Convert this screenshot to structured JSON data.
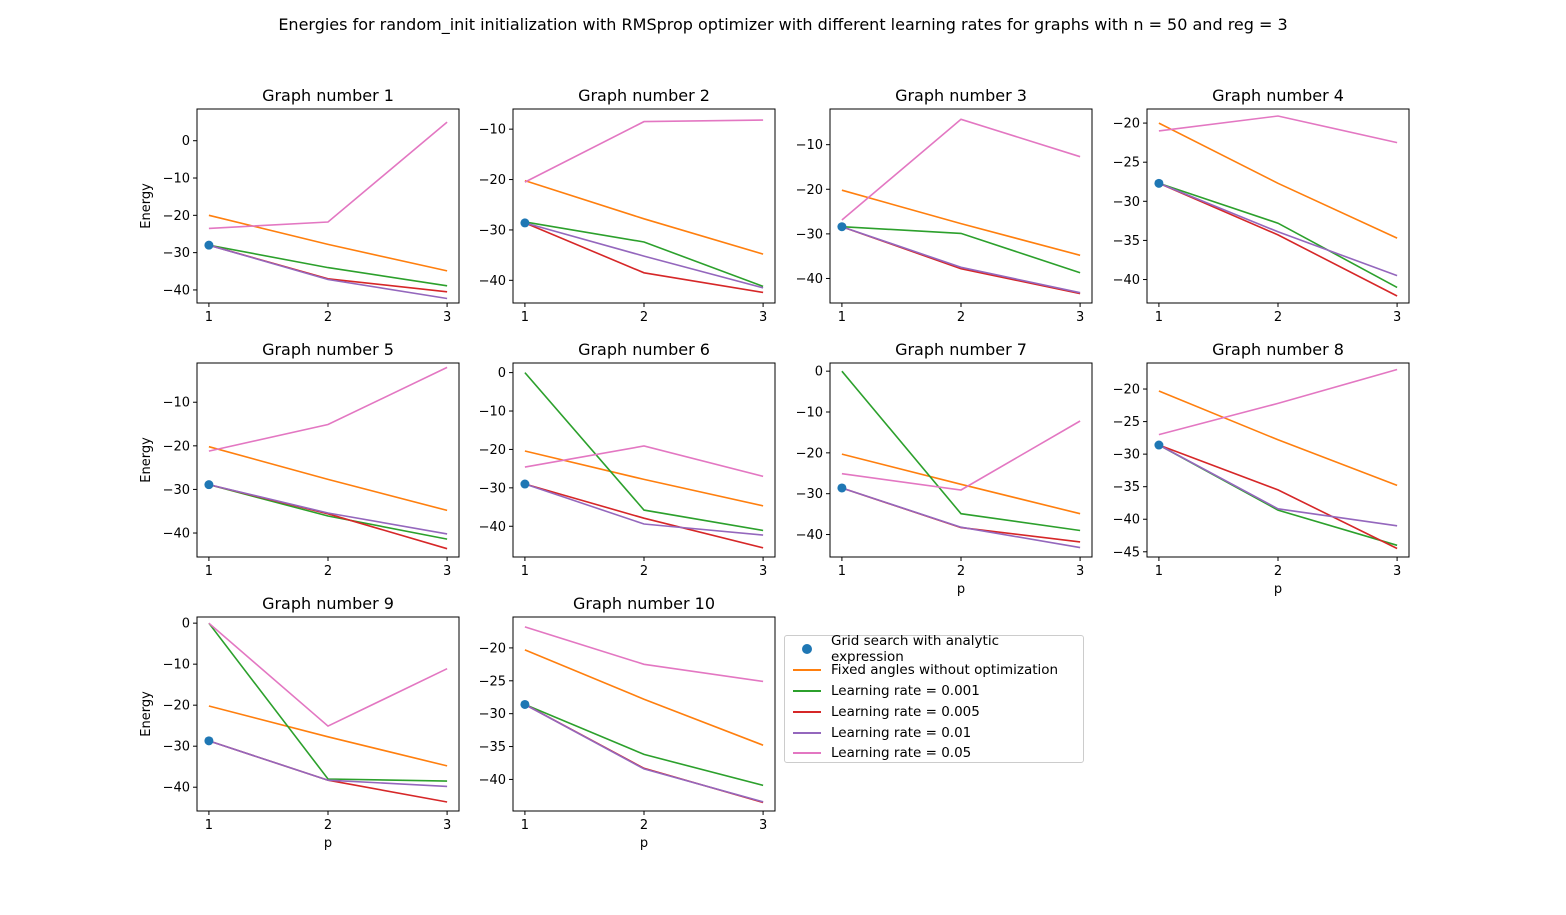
{
  "figure": {
    "title": "Energies for random_init initialization with RMSprop optimizer with different learning rates for graphs with n = 50 and reg = 3"
  },
  "colors": {
    "grid": "#1f77b4",
    "fixed": "#ff7f0e",
    "lr0001": "#2ca02c",
    "lr0005": "#d62728",
    "lr001": "#9467bd",
    "lr005": "#e377c2"
  },
  "legend": {
    "grid": "Grid search with analytic expression",
    "fixed": "Fixed angles without optimization",
    "lr0001": "Learning rate = 0.001",
    "lr0005": "Learning rate = 0.005",
    "lr001": "Learning rate = 0.01",
    "lr005": "Learning rate = 0.05"
  },
  "chart_data": [
    {
      "type": "line",
      "title": "Graph number 1",
      "xlabel": "",
      "ylabel": "Energy",
      "x": [
        1,
        2,
        3
      ],
      "xticks": [
        "1",
        "2",
        "3"
      ],
      "ylim": [
        -43.5,
        8.5
      ],
      "yticks": [
        0,
        -10,
        -20,
        -30,
        -40
      ],
      "grid_point": -28.0,
      "series": [
        {
          "name": "Fixed angles without optimization",
          "key": "fixed",
          "values": [
            -20.0,
            -27.8,
            -34.9
          ]
        },
        {
          "name": "Learning rate = 0.001",
          "key": "lr0001",
          "values": [
            -28.0,
            -34.0,
            -38.9
          ]
        },
        {
          "name": "Learning rate = 0.005",
          "key": "lr0005",
          "values": [
            -28.0,
            -37.0,
            -40.5
          ]
        },
        {
          "name": "Learning rate = 0.01",
          "key": "lr001",
          "values": [
            -28.0,
            -37.2,
            -42.3
          ]
        },
        {
          "name": "Learning rate = 0.05",
          "key": "lr005",
          "values": [
            -23.5,
            -21.8,
            5.0
          ]
        }
      ]
    },
    {
      "type": "line",
      "title": "Graph number 2",
      "xlabel": "",
      "ylabel": "",
      "x": [
        1,
        2,
        3
      ],
      "xticks": [
        "1",
        "2",
        "3"
      ],
      "ylim": [
        -44.5,
        -6.0
      ],
      "yticks": [
        -10,
        -20,
        -30,
        -40
      ],
      "grid_point": -28.6,
      "series": [
        {
          "name": "Fixed angles without optimization",
          "key": "fixed",
          "values": [
            -20.2,
            -27.8,
            -34.8
          ]
        },
        {
          "name": "Learning rate = 0.001",
          "key": "lr0001",
          "values": [
            -28.4,
            -32.4,
            -41.2
          ]
        },
        {
          "name": "Learning rate = 0.005",
          "key": "lr0005",
          "values": [
            -28.6,
            -38.5,
            -42.4
          ]
        },
        {
          "name": "Learning rate = 0.01",
          "key": "lr001",
          "values": [
            -28.6,
            -35.2,
            -41.5
          ]
        },
        {
          "name": "Learning rate = 0.05",
          "key": "lr005",
          "values": [
            -20.5,
            -8.5,
            -8.2
          ]
        }
      ]
    },
    {
      "type": "line",
      "title": "Graph number 3",
      "xlabel": "",
      "ylabel": "",
      "x": [
        1,
        2,
        3
      ],
      "xticks": [
        "1",
        "2",
        "3"
      ],
      "ylim": [
        -45.5,
        -2.0
      ],
      "yticks": [
        -10,
        -20,
        -30,
        -40
      ],
      "grid_point": -28.4,
      "series": [
        {
          "name": "Fixed angles without optimization",
          "key": "fixed",
          "values": [
            -20.2,
            -27.7,
            -34.8
          ]
        },
        {
          "name": "Learning rate = 0.001",
          "key": "lr0001",
          "values": [
            -28.4,
            -29.9,
            -38.7
          ]
        },
        {
          "name": "Learning rate = 0.005",
          "key": "lr0005",
          "values": [
            -28.4,
            -37.8,
            -43.4
          ]
        },
        {
          "name": "Learning rate = 0.01",
          "key": "lr001",
          "values": [
            -28.4,
            -37.5,
            -43.2
          ]
        },
        {
          "name": "Learning rate = 0.05",
          "key": "lr005",
          "values": [
            -26.9,
            -4.3,
            -12.7
          ]
        }
      ]
    },
    {
      "type": "line",
      "title": "Graph number 4",
      "xlabel": "",
      "ylabel": "",
      "x": [
        1,
        2,
        3
      ],
      "xticks": [
        "1",
        "2",
        "3"
      ],
      "ylim": [
        -43.0,
        -18.2
      ],
      "yticks": [
        -20,
        -25,
        -30,
        -35,
        -40
      ],
      "grid_point": -27.7,
      "series": [
        {
          "name": "Fixed angles without optimization",
          "key": "fixed",
          "values": [
            -20.0,
            -27.7,
            -34.7
          ]
        },
        {
          "name": "Learning rate = 0.001",
          "key": "lr0001",
          "values": [
            -27.7,
            -32.8,
            -41.0
          ]
        },
        {
          "name": "Learning rate = 0.005",
          "key": "lr0005",
          "values": [
            -27.7,
            -34.3,
            -42.1
          ]
        },
        {
          "name": "Learning rate = 0.01",
          "key": "lr001",
          "values": [
            -27.7,
            -33.9,
            -39.5
          ]
        },
        {
          "name": "Learning rate = 0.05",
          "key": "lr005",
          "values": [
            -21.0,
            -19.1,
            -22.5
          ]
        }
      ]
    },
    {
      "type": "line",
      "title": "Graph number 5",
      "xlabel": "",
      "ylabel": "Energy",
      "x": [
        1,
        2,
        3
      ],
      "xticks": [
        "1",
        "2",
        "3"
      ],
      "ylim": [
        -45.5,
        -1.0
      ],
      "yticks": [
        -10,
        -20,
        -30,
        -40
      ],
      "grid_point": -28.9,
      "series": [
        {
          "name": "Fixed angles without optimization",
          "key": "fixed",
          "values": [
            -20.2,
            -27.7,
            -34.8
          ]
        },
        {
          "name": "Learning rate = 0.001",
          "key": "lr0001",
          "values": [
            -28.9,
            -36.1,
            -41.4
          ]
        },
        {
          "name": "Learning rate = 0.005",
          "key": "lr0005",
          "values": [
            -28.9,
            -35.6,
            -43.6
          ]
        },
        {
          "name": "Learning rate = 0.01",
          "key": "lr001",
          "values": [
            -28.9,
            -35.4,
            -40.2
          ]
        },
        {
          "name": "Learning rate = 0.05",
          "key": "lr005",
          "values": [
            -21.2,
            -15.1,
            -2.0
          ]
        }
      ]
    },
    {
      "type": "line",
      "title": "Graph number 6",
      "xlabel": "",
      "ylabel": "",
      "x": [
        1,
        2,
        3
      ],
      "xticks": [
        "1",
        "2",
        "3"
      ],
      "ylim": [
        -48.0,
        2.5
      ],
      "yticks": [
        0,
        -10,
        -20,
        -30,
        -40
      ],
      "grid_point": -29.0,
      "series": [
        {
          "name": "Fixed angles without optimization",
          "key": "fixed",
          "values": [
            -20.4,
            -27.8,
            -34.7
          ]
        },
        {
          "name": "Learning rate = 0.001",
          "key": "lr0001",
          "values": [
            0.0,
            -35.8,
            -41.1
          ]
        },
        {
          "name": "Learning rate = 0.005",
          "key": "lr0005",
          "values": [
            -29.0,
            -37.9,
            -45.6
          ]
        },
        {
          "name": "Learning rate = 0.01",
          "key": "lr001",
          "values": [
            -29.0,
            -39.4,
            -42.3
          ]
        },
        {
          "name": "Learning rate = 0.05",
          "key": "lr005",
          "values": [
            -24.6,
            -19.1,
            -27.0
          ]
        }
      ]
    },
    {
      "type": "line",
      "title": "Graph number 7",
      "xlabel": "p",
      "ylabel": "",
      "x": [
        1,
        2,
        3
      ],
      "xticks": [
        "1",
        "2",
        "3"
      ],
      "ylim": [
        -45.5,
        2.0
      ],
      "yticks": [
        0,
        -10,
        -20,
        -30,
        -40
      ],
      "grid_point": -28.6,
      "series": [
        {
          "name": "Fixed angles without optimization",
          "key": "fixed",
          "values": [
            -20.3,
            -27.7,
            -34.9
          ]
        },
        {
          "name": "Learning rate = 0.001",
          "key": "lr0001",
          "values": [
            0.0,
            -34.9,
            -39.0
          ]
        },
        {
          "name": "Learning rate = 0.005",
          "key": "lr0005",
          "values": [
            -28.6,
            -38.3,
            -41.8
          ]
        },
        {
          "name": "Learning rate = 0.01",
          "key": "lr001",
          "values": [
            -28.6,
            -38.2,
            -43.2
          ]
        },
        {
          "name": "Learning rate = 0.05",
          "key": "lr005",
          "values": [
            -25.1,
            -29.1,
            -12.2
          ]
        }
      ]
    },
    {
      "type": "line",
      "title": "Graph number 8",
      "xlabel": "p",
      "ylabel": "",
      "x": [
        1,
        2,
        3
      ],
      "xticks": [
        "1",
        "2",
        "3"
      ],
      "ylim": [
        -45.8,
        -16.0
      ],
      "yticks": [
        -20,
        -25,
        -30,
        -35,
        -40,
        -45
      ],
      "grid_point": -28.6,
      "series": [
        {
          "name": "Fixed angles without optimization",
          "key": "fixed",
          "values": [
            -20.3,
            -27.8,
            -34.8
          ]
        },
        {
          "name": "Learning rate = 0.001",
          "key": "lr0001",
          "values": [
            -28.6,
            -38.6,
            -44.0
          ]
        },
        {
          "name": "Learning rate = 0.005",
          "key": "lr0005",
          "values": [
            -28.6,
            -35.5,
            -44.5
          ]
        },
        {
          "name": "Learning rate = 0.01",
          "key": "lr001",
          "values": [
            -28.6,
            -38.4,
            -41.0
          ]
        },
        {
          "name": "Learning rate = 0.05",
          "key": "lr005",
          "values": [
            -27.0,
            -22.2,
            -17.0
          ]
        }
      ]
    },
    {
      "type": "line",
      "title": "Graph number 9",
      "xlabel": "p",
      "ylabel": "Energy",
      "x": [
        1,
        2,
        3
      ],
      "xticks": [
        "1",
        "2",
        "3"
      ],
      "ylim": [
        -45.8,
        1.5
      ],
      "yticks": [
        0,
        -10,
        -20,
        -30,
        -40
      ],
      "grid_point": -28.7,
      "series": [
        {
          "name": "Fixed angles without optimization",
          "key": "fixed",
          "values": [
            -20.2,
            -27.7,
            -34.8
          ]
        },
        {
          "name": "Learning rate = 0.001",
          "key": "lr0001",
          "values": [
            0.0,
            -38.0,
            -38.5
          ]
        },
        {
          "name": "Learning rate = 0.005",
          "key": "lr0005",
          "values": [
            -28.7,
            -38.3,
            -43.6
          ]
        },
        {
          "name": "Learning rate = 0.01",
          "key": "lr001",
          "values": [
            -28.7,
            -38.3,
            -39.8
          ]
        },
        {
          "name": "Learning rate = 0.05",
          "key": "lr005",
          "values": [
            0.0,
            -25.1,
            -11.1
          ]
        }
      ]
    },
    {
      "type": "line",
      "title": "Graph number 10",
      "xlabel": "p",
      "ylabel": "",
      "x": [
        1,
        2,
        3
      ],
      "xticks": [
        "1",
        "2",
        "3"
      ],
      "ylim": [
        -44.8,
        -15.3
      ],
      "yticks": [
        -20,
        -25,
        -30,
        -35,
        -40
      ],
      "grid_point": -28.6,
      "series": [
        {
          "name": "Fixed angles without optimization",
          "key": "fixed",
          "values": [
            -20.3,
            -27.8,
            -34.8
          ]
        },
        {
          "name": "Learning rate = 0.001",
          "key": "lr0001",
          "values": [
            -28.6,
            -36.2,
            -40.9
          ]
        },
        {
          "name": "Learning rate = 0.005",
          "key": "lr0005",
          "values": [
            -28.6,
            -38.3,
            -43.5
          ]
        },
        {
          "name": "Learning rate = 0.01",
          "key": "lr001",
          "values": [
            -28.6,
            -38.4,
            -43.4
          ]
        },
        {
          "name": "Learning rate = 0.05",
          "key": "lr005",
          "values": [
            -16.8,
            -22.5,
            -25.1
          ]
        }
      ]
    }
  ]
}
